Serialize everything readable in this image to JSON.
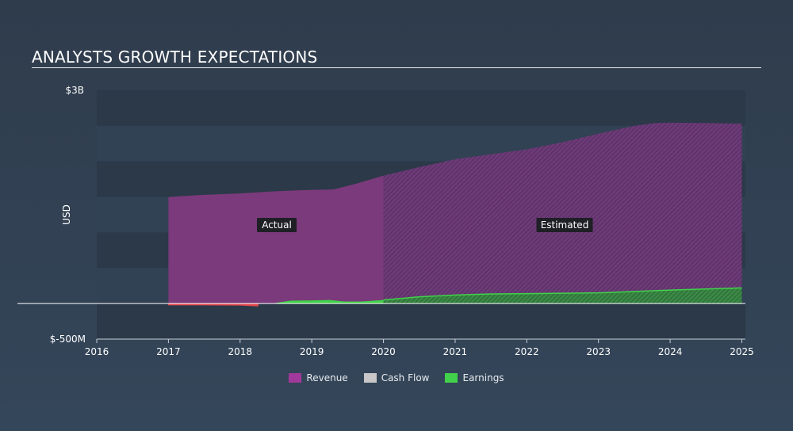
{
  "header": {
    "title": "ANALYSTS GROWTH EXPECTATIONS"
  },
  "chart_data": {
    "type": "area",
    "title": "ANALYSTS GROWTH EXPECTATIONS",
    "ylabel": "USD",
    "ylim": [
      -500000000,
      3000000000
    ],
    "xlim": [
      2016,
      2025.05
    ],
    "y_ticks": [
      "$3B",
      "$-500M"
    ],
    "x_ticks": [
      "2016",
      "2017",
      "2018",
      "2019",
      "2020",
      "2021",
      "2022",
      "2023",
      "2024",
      "2025"
    ],
    "actual_end": 2020.0,
    "annotations": {
      "actual": "Actual",
      "estimated": "Estimated"
    },
    "grid": true,
    "legend_position": "bottom-center",
    "series": [
      {
        "name": "Revenue",
        "color": "#a0399b",
        "x": [
          2017.0,
          2017.5,
          2018.0,
          2018.5,
          2019.0,
          2019.3,
          2019.6,
          2020.0,
          2020.5,
          2021.0,
          2021.5,
          2022.0,
          2022.5,
          2023.0,
          2023.5,
          2023.8,
          2024.0,
          2024.5,
          2025.0
        ],
        "y": [
          1500000000,
          1530000000,
          1550000000,
          1580000000,
          1600000000,
          1605000000,
          1680000000,
          1800000000,
          1920000000,
          2030000000,
          2100000000,
          2170000000,
          2270000000,
          2390000000,
          2500000000,
          2540000000,
          2545000000,
          2540000000,
          2530000000
        ]
      },
      {
        "name": "Cash Flow",
        "color": "#c8c8c8",
        "x": [],
        "y": []
      },
      {
        "name": "Earnings",
        "color": "#41d14a",
        "x": [
          2017.0,
          2017.5,
          2018.0,
          2018.25,
          2018.5,
          2018.7,
          2019.0,
          2019.25,
          2019.45,
          2019.7,
          2020.0,
          2020.5,
          2021.0,
          2021.5,
          2022.0,
          2022.5,
          2023.0,
          2023.5,
          2024.0,
          2024.5,
          2025.0
        ],
        "y": [
          -20000000,
          -20000000,
          -22000000,
          -35000000,
          10000000,
          40000000,
          45000000,
          50000000,
          30000000,
          30000000,
          50000000,
          95000000,
          120000000,
          135000000,
          140000000,
          145000000,
          150000000,
          170000000,
          190000000,
          205000000,
          220000000
        ]
      }
    ]
  }
}
